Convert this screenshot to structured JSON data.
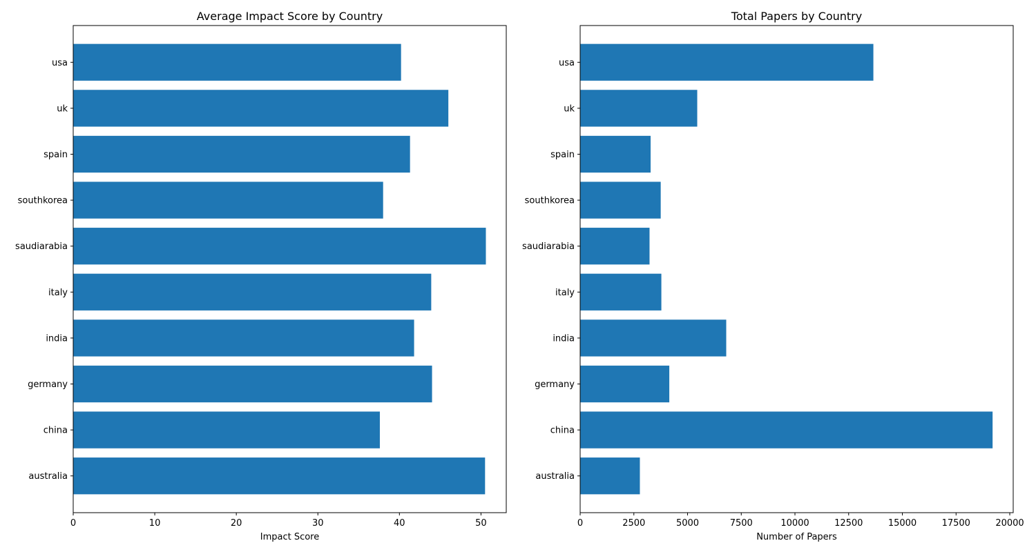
{
  "chart_data": [
    {
      "type": "bar",
      "orientation": "horizontal",
      "title": "Average Impact Score by Country",
      "xlabel": "Impact Score",
      "ylabel": "",
      "categories": [
        "usa",
        "uk",
        "spain",
        "southkorea",
        "saudiarabia",
        "italy",
        "india",
        "germany",
        "china",
        "australia"
      ],
      "values": [
        40.2,
        46.0,
        41.3,
        38.0,
        50.6,
        43.9,
        41.8,
        44.0,
        37.6,
        50.5
      ],
      "xlim": [
        0,
        53.1
      ],
      "xticks": [
        0,
        10,
        20,
        30,
        40,
        50
      ],
      "xtick_labels": [
        "0",
        "10",
        "20",
        "30",
        "40",
        "50"
      ],
      "grid": false,
      "color": "#1f77b4"
    },
    {
      "type": "bar",
      "orientation": "horizontal",
      "title": "Total Papers by Country",
      "xlabel": "Number of Papers",
      "ylabel": "",
      "categories": [
        "usa",
        "uk",
        "spain",
        "southkorea",
        "saudiarabia",
        "italy",
        "india",
        "germany",
        "china",
        "australia"
      ],
      "values": [
        13650,
        5450,
        3280,
        3750,
        3230,
        3780,
        6800,
        4150,
        19200,
        2780
      ],
      "xlim": [
        0,
        20160
      ],
      "xticks": [
        0,
        2500,
        5000,
        7500,
        10000,
        12500,
        15000,
        17500,
        20000
      ],
      "xtick_labels": [
        "0",
        "2500",
        "5000",
        "7500",
        "10000",
        "12500",
        "15000",
        "17500",
        "20000"
      ],
      "grid": false,
      "color": "#1f77b4"
    }
  ]
}
